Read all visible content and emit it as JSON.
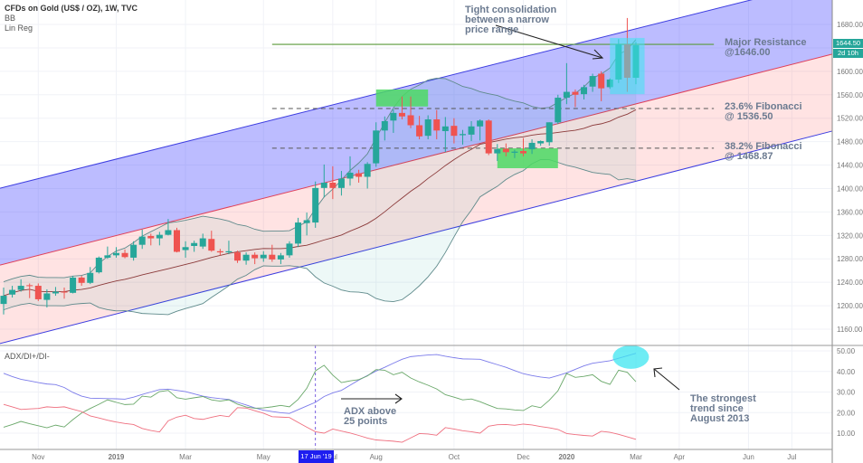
{
  "header": {
    "title": "CFDs on Gold (US$ / OZ), 1W, TVC",
    "indicator_1": "BB",
    "indicator_2": "Lin Reg"
  },
  "adx_panel": {
    "title": "ADX/DI+/DI-"
  },
  "price_marker": {
    "value": "1644.50",
    "countdown": "2d 10h",
    "color": "#26a69a"
  },
  "crosshair_label": "17 Jun '19",
  "annotations": {
    "consolidation": "Tight consolidation\nbetween a narrow\nprice range",
    "resistance": "Major Resistance\n@1646.00",
    "fib236": "23.6% Fibonacci\n@ 1536.50",
    "fib382": "38.2% Fibonacci\n@ 1468.87",
    "adx_note": "ADX above\n25 points",
    "trend_note": "The strongest\ntrend since\nAugust 2013"
  },
  "colors": {
    "up": "#26a69a",
    "down": "#ef5350",
    "adx": "#7b7bea",
    "di_plus": "#6aa86a",
    "di_minus": "#ef6f7f",
    "channel_edge": "#3d3de0",
    "channel_mid": "#e0405a",
    "bb_band": "#5f8a8b",
    "bb_basis": "#8b3a3a",
    "highlight_green": "#4cd964",
    "highlight_cyan": "#3ee6f0"
  },
  "chart_data": [
    {
      "type": "candlestick",
      "title": "CFDs on Gold (US$ / OZ), 1W, TVC",
      "y_ticks": [
        1160,
        1200,
        1240,
        1280,
        1320,
        1360,
        1400,
        1440,
        1480,
        1520,
        1560,
        1600,
        1640,
        1680
      ],
      "ylim": [
        1130,
        1720
      ],
      "x_ticks": [
        [
          "Nov",
          "2018-11-05"
        ],
        [
          "2019",
          "2019-01-07"
        ],
        [
          "Mar",
          "2019-03-04"
        ],
        [
          "May",
          "2019-05-06"
        ],
        [
          "Jul",
          "2019-07-01"
        ],
        [
          "Aug",
          "2019-08-05"
        ],
        [
          "Oct",
          "2019-10-07"
        ],
        [
          "Dec",
          "2019-12-02"
        ],
        [
          "2020",
          "2020-01-06"
        ],
        [
          "Mar",
          "2020-03-02"
        ],
        [
          "Apr",
          "2020-04-06"
        ],
        [
          "Jun",
          "2020-06-01"
        ],
        [
          "Jul",
          "2020-07-06"
        ]
      ],
      "candles_fields": [
        "date",
        "open",
        "high",
        "low",
        "close"
      ],
      "candles": [
        [
          "2018-10-08",
          1203,
          1231,
          1185,
          1217
        ],
        [
          "2018-10-15",
          1219,
          1234,
          1214,
          1227
        ],
        [
          "2018-10-22",
          1227,
          1245,
          1224,
          1234
        ],
        [
          "2018-10-29",
          1235,
          1238,
          1213,
          1234
        ],
        [
          "2018-11-05",
          1234,
          1238,
          1208,
          1211
        ],
        [
          "2018-11-12",
          1210,
          1228,
          1197,
          1221
        ],
        [
          "2018-11-19",
          1221,
          1232,
          1217,
          1224
        ],
        [
          "2018-11-26",
          1224,
          1231,
          1212,
          1223
        ],
        [
          "2018-12-03",
          1222,
          1251,
          1221,
          1248
        ],
        [
          "2018-12-10",
          1248,
          1251,
          1234,
          1239
        ],
        [
          "2018-12-17",
          1239,
          1266,
          1237,
          1256
        ],
        [
          "2018-12-24",
          1257,
          1284,
          1255,
          1282
        ],
        [
          "2018-12-31",
          1282,
          1301,
          1280,
          1286
        ],
        [
          "2019-01-07",
          1286,
          1300,
          1282,
          1290
        ],
        [
          "2019-01-14",
          1290,
          1296,
          1281,
          1283
        ],
        [
          "2019-01-21",
          1282,
          1310,
          1277,
          1304
        ],
        [
          "2019-01-28",
          1304,
          1330,
          1297,
          1318
        ],
        [
          "2019-02-04",
          1319,
          1323,
          1303,
          1315
        ],
        [
          "2019-02-11",
          1315,
          1326,
          1303,
          1321
        ],
        [
          "2019-02-18",
          1321,
          1348,
          1320,
          1329
        ],
        [
          "2019-02-25",
          1329,
          1333,
          1291,
          1292
        ],
        [
          "2019-03-04",
          1295,
          1310,
          1282,
          1300
        ],
        [
          "2019-03-11",
          1302,
          1311,
          1292,
          1307
        ],
        [
          "2019-03-18",
          1301,
          1323,
          1297,
          1315
        ],
        [
          "2019-03-25",
          1314,
          1328,
          1292,
          1294
        ],
        [
          "2019-04-01",
          1293,
          1297,
          1286,
          1291
        ],
        [
          "2019-04-08",
          1291,
          1311,
          1288,
          1293
        ],
        [
          "2019-04-15",
          1291,
          1294,
          1273,
          1277
        ],
        [
          "2019-04-22",
          1277,
          1291,
          1270,
          1287
        ],
        [
          "2019-04-29",
          1287,
          1291,
          1271,
          1281
        ],
        [
          "2019-05-06",
          1281,
          1293,
          1275,
          1287
        ],
        [
          "2019-05-13",
          1287,
          1304,
          1275,
          1279
        ],
        [
          "2019-05-20",
          1279,
          1290,
          1271,
          1286
        ],
        [
          "2019-05-27",
          1286,
          1310,
          1282,
          1306
        ],
        [
          "2019-06-03",
          1306,
          1350,
          1300,
          1342
        ],
        [
          "2019-06-10",
          1341,
          1359,
          1320,
          1346
        ],
        [
          "2019-06-17",
          1342,
          1412,
          1333,
          1401
        ],
        [
          "2019-06-24",
          1401,
          1441,
          1385,
          1410
        ],
        [
          "2019-07-01",
          1410,
          1438,
          1382,
          1401
        ],
        [
          "2019-07-08",
          1401,
          1430,
          1388,
          1417
        ],
        [
          "2019-07-15",
          1417,
          1455,
          1405,
          1427
        ],
        [
          "2019-07-22",
          1426,
          1432,
          1410,
          1420
        ],
        [
          "2019-07-29",
          1420,
          1445,
          1400,
          1442
        ],
        [
          "2019-08-05",
          1443,
          1513,
          1437,
          1499
        ],
        [
          "2019-08-12",
          1499,
          1523,
          1482,
          1515
        ],
        [
          "2019-08-19",
          1516,
          1535,
          1495,
          1529
        ],
        [
          "2019-08-26",
          1529,
          1557,
          1518,
          1523
        ],
        [
          "2019-09-02",
          1525,
          1557,
          1503,
          1508
        ],
        [
          "2019-09-09",
          1508,
          1524,
          1484,
          1489
        ],
        [
          "2019-09-16",
          1490,
          1525,
          1484,
          1518
        ],
        [
          "2019-09-23",
          1518,
          1534,
          1484,
          1499
        ],
        [
          "2019-09-30",
          1498,
          1522,
          1462,
          1506
        ],
        [
          "2019-10-07",
          1507,
          1520,
          1477,
          1490
        ],
        [
          "2019-10-14",
          1491,
          1500,
          1475,
          1493
        ],
        [
          "2019-10-21",
          1492,
          1515,
          1481,
          1506
        ],
        [
          "2019-10-28",
          1506,
          1518,
          1482,
          1516
        ],
        [
          "2019-11-04",
          1516,
          1518,
          1457,
          1460
        ],
        [
          "2019-11-11",
          1460,
          1476,
          1447,
          1467
        ],
        [
          "2019-11-18",
          1468,
          1477,
          1455,
          1462
        ],
        [
          "2019-11-25",
          1461,
          1466,
          1452,
          1463
        ],
        [
          "2019-12-02",
          1464,
          1486,
          1455,
          1460
        ],
        [
          "2019-12-09",
          1467,
          1484,
          1459,
          1478
        ],
        [
          "2019-12-16",
          1477,
          1482,
          1473,
          1481
        ],
        [
          "2019-12-23",
          1479,
          1513,
          1473,
          1513
        ],
        [
          "2019-12-30",
          1513,
          1560,
          1510,
          1555
        ],
        [
          "2020-01-06",
          1555,
          1614,
          1544,
          1565
        ],
        [
          "2020-01-13",
          1565,
          1569,
          1539,
          1560
        ],
        [
          "2020-01-20",
          1561,
          1577,
          1552,
          1573
        ],
        [
          "2020-01-27",
          1574,
          1596,
          1565,
          1592
        ],
        [
          "2020-02-03",
          1596,
          1600,
          1549,
          1571
        ],
        [
          "2020-02-10",
          1573,
          1588,
          1570,
          1586
        ],
        [
          "2020-02-17",
          1586,
          1655,
          1580,
          1646
        ],
        [
          "2020-02-24",
          1646,
          1691,
          1565,
          1589
        ],
        [
          "2020-03-02",
          1589,
          1650,
          1578,
          1644.5
        ]
      ],
      "bollinger": {
        "period": 20,
        "stddev": 2
      },
      "linreg_channel": {
        "upper": [
          [
            "2018-10-08",
            1402
          ],
          [
            "2020-03-02",
            1672.6
          ]
        ],
        "middle": [
          [
            "2018-10-08",
            1271
          ],
          [
            "2020-03-02",
            1544.4
          ]
        ],
        "lower": [
          [
            "2018-10-08",
            1137
          ],
          [
            "2020-03-02",
            1412.5
          ]
        ]
      },
      "levels": [
        {
          "label": "Major Resistance",
          "price": 1646.0,
          "style": "solid",
          "color": "#5a9a3a",
          "from": "2019-05-13",
          "to": "2020-05-04"
        },
        {
          "label": "23.6% Fibonacci",
          "price": 1536.5,
          "style": "dashed",
          "color": "#555",
          "from": "2019-05-13",
          "to": "2020-05-04"
        },
        {
          "label": "38.2% Fibonacci",
          "price": 1468.87,
          "style": "dashed",
          "color": "#555",
          "from": "2019-05-13",
          "to": "2020-05-04"
        }
      ],
      "highlight_boxes": [
        {
          "color": "#4cd964",
          "from": "2019-08-05",
          "to": "2019-09-16",
          "top": 1569,
          "bottom": 1540
        },
        {
          "color": "#4cd964",
          "from": "2019-11-11",
          "to": "2019-12-30",
          "top": 1468.6,
          "bottom": 1434.7
        },
        {
          "color": "#3ee6f0",
          "from": "2020-02-10",
          "to": "2020-03-09",
          "top": 1657,
          "bottom": 1561
        }
      ]
    },
    {
      "type": "line",
      "title": "ADX/DI+/DI-",
      "y_ticks": [
        10,
        20,
        30,
        40,
        50
      ],
      "ylim": [
        3,
        52
      ],
      "series": [
        {
          "name": "ADX",
          "color": "#7b7bea",
          "values": [
            39.1,
            37.5,
            36.2,
            35.4,
            34.6,
            33.9,
            33.6,
            32.2,
            29.8,
            28,
            27,
            26.9,
            26.8,
            26.7,
            26.5,
            27.5,
            28.8,
            30,
            31.2,
            31.4,
            30.8,
            30.2,
            29.1,
            28,
            27.3,
            26.8,
            26.4,
            25,
            23.7,
            22.3,
            21.2,
            20.5,
            19.9,
            19.6,
            21.4,
            23.2,
            25,
            27.8,
            29.6,
            30.8,
            33.3,
            35.8,
            38,
            40.2,
            42,
            44,
            45.9,
            47.2,
            47.6,
            48,
            48.2,
            47.4,
            46.7,
            46.1,
            46,
            45.9,
            44.6,
            43.3,
            42,
            40.4,
            38.9,
            38,
            37.3,
            36.8,
            38,
            39.3,
            41,
            42.7,
            44,
            44.6,
            45.2,
            46.4,
            47.6,
            48.8
          ]
        },
        {
          "name": "DI+",
          "color": "#6aa86a",
          "values": [
            12.9,
            14.2,
            15.7,
            14.6,
            13.6,
            12.6,
            13.9,
            13,
            16.6,
            19.8,
            22,
            24,
            26.2,
            25,
            23.9,
            24.1,
            28,
            27.5,
            30.2,
            30.8,
            27.2,
            26.5,
            27.2,
            27.8,
            26.2,
            25.6,
            26.2,
            24.1,
            22.7,
            22.1,
            22.3,
            22.8,
            23.5,
            22.8,
            26.4,
            31.8,
            40.3,
            43,
            38.2,
            34.6,
            35.4,
            36,
            37.8,
            40.9,
            40.6,
            38.4,
            39.6,
            36.8,
            34.9,
            33.3,
            31.5,
            28.7,
            27.5,
            26.2,
            26.6,
            25.3,
            23.6,
            22,
            21.8,
            21.3,
            21,
            23.3,
            22.4,
            26,
            30.6,
            39,
            37.1,
            37.6,
            38.4,
            35.2,
            33.7,
            40.6,
            39.6,
            35
          ]
        },
        {
          "name": "DI-",
          "color": "#ef6f7f",
          "values": [
            24,
            22.8,
            21.5,
            21.8,
            22,
            22.8,
            22.5,
            22.8,
            21.6,
            20.5,
            18.4,
            17.4,
            16.3,
            15.4,
            14.7,
            14.2,
            12.3,
            11.3,
            10.6,
            16,
            17.8,
            18.7,
            17.1,
            16.7,
            17.7,
            18.6,
            18,
            22.4,
            22.2,
            20.9,
            19.7,
            18,
            17.8,
            17.6,
            15.2,
            12.9,
            10.7,
            10,
            12,
            11,
            10.1,
            8.9,
            7.6,
            6.7,
            6.4,
            6.1,
            5.6,
            7.7,
            9.8,
            9.6,
            9,
            12.7,
            12,
            11.2,
            10.7,
            10,
            13.4,
            14.1,
            14.2,
            13.8,
            14.4,
            14,
            13.2,
            12.6,
            11.8,
            9.8,
            9.3,
            8.9,
            8.6,
            10.9,
            10.4,
            9.4,
            8.2,
            7
          ]
        }
      ],
      "crosshair_date": "2019-06-17",
      "highlight": {
        "color": "#3ee6f0",
        "date": "2020-02-24",
        "value": 47
      }
    }
  ]
}
